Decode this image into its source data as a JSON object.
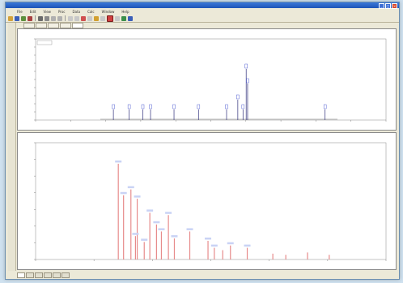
{
  "window": {
    "title": "",
    "menu": [
      "File",
      "Edit",
      "View",
      "Proc",
      "Data",
      "Calc",
      "Window",
      "Help"
    ],
    "document_tabs": [
      "",
      "",
      "",
      "",
      ""
    ],
    "bottom_tabs": [
      "",
      "",
      "",
      "",
      "",
      ""
    ]
  },
  "top_chart": {
    "title": "",
    "legend_label": "",
    "ylabel": "",
    "xlabel": "",
    "y_ticks": [
      "100",
      "90",
      "80",
      "70",
      "60",
      "50",
      "40",
      "30",
      "20",
      "10",
      "0"
    ],
    "peaks": [
      {
        "x": 0.222,
        "h": 0.13
      },
      {
        "x": 0.267,
        "h": 0.13
      },
      {
        "x": 0.306,
        "h": 0.13
      },
      {
        "x": 0.328,
        "h": 0.13
      },
      {
        "x": 0.395,
        "h": 0.13
      },
      {
        "x": 0.465,
        "h": 0.13
      },
      {
        "x": 0.545,
        "h": 0.13
      },
      {
        "x": 0.577,
        "h": 0.25
      },
      {
        "x": 0.592,
        "h": 0.13
      },
      {
        "x": 0.601,
        "h": 0.63
      },
      {
        "x": 0.605,
        "h": 0.45
      },
      {
        "x": 0.826,
        "h": 0.13
      }
    ]
  },
  "bottom_chart": {
    "title": "",
    "ylabel": "",
    "xlabel": "",
    "peaks": [
      {
        "x": 0.236,
        "h": 0.82
      },
      {
        "x": 0.272,
        "h": 0.6
      },
      {
        "x": 0.29,
        "h": 0.52
      },
      {
        "x": 0.326,
        "h": 0.4
      },
      {
        "x": 0.345,
        "h": 0.3
      },
      {
        "x": 0.359,
        "h": 0.24
      },
      {
        "x": 0.379,
        "h": 0.38
      },
      {
        "x": 0.396,
        "h": 0.18
      },
      {
        "x": 0.44,
        "h": 0.24
      },
      {
        "x": 0.492,
        "h": 0.16
      },
      {
        "x": 0.51,
        "h": 0.1
      },
      {
        "x": 0.534,
        "h": 0.08
      },
      {
        "x": 0.556,
        "h": 0.12
      },
      {
        "x": 0.604,
        "h": 0.1
      },
      {
        "x": 0.677,
        "h": 0.05
      },
      {
        "x": 0.714,
        "h": 0.04
      },
      {
        "x": 0.776,
        "h": 0.06
      },
      {
        "x": 0.838,
        "h": 0.04
      },
      {
        "x": 0.251,
        "h": 0.55
      },
      {
        "x": 0.285,
        "h": 0.2
      },
      {
        "x": 0.31,
        "h": 0.15
      }
    ]
  },
  "colors": {
    "top_peak": "#4a4a8c",
    "bottom_peak": "#e78b8b",
    "label_blue": "#2d3cc8"
  }
}
